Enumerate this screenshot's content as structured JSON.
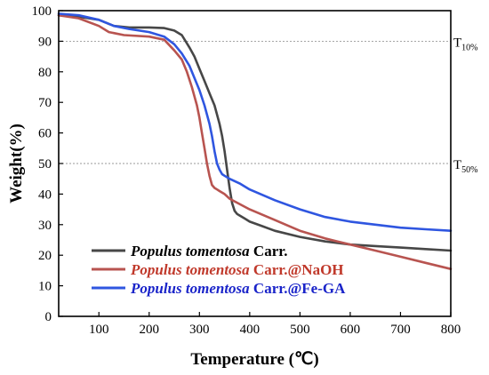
{
  "chart_data": {
    "type": "line",
    "title": "",
    "xlabel": "Temperature (℃)",
    "ylabel": "Weight(%)",
    "xlim": [
      20,
      800
    ],
    "ylim": [
      0,
      100
    ],
    "xticks": [
      100,
      200,
      300,
      400,
      500,
      600,
      700,
      800
    ],
    "yticks": [
      0,
      10,
      20,
      30,
      40,
      50,
      60,
      70,
      80,
      90,
      100
    ],
    "grid": false,
    "legend_position": "bottom-left",
    "reference_lines": [
      {
        "y": 90,
        "label_main": "T",
        "label_sub": "10%"
      },
      {
        "y": 50,
        "label_main": "T",
        "label_sub": "50%"
      }
    ],
    "series": [
      {
        "name_italic": "Populus tomentosa",
        "name_suffix": " Carr.",
        "color": "#474747",
        "text_color": "#000000",
        "x": [
          20,
          60,
          100,
          130,
          160,
          200,
          230,
          250,
          265,
          280,
          290,
          300,
          310,
          320,
          330,
          340,
          345,
          350,
          355,
          360,
          365,
          370,
          375,
          380,
          390,
          400,
          425,
          450,
          500,
          550,
          600,
          650,
          700,
          750,
          800
        ],
        "y": [
          98.5,
          98,
          97,
          95,
          94.5,
          94.5,
          94.3,
          93.5,
          92,
          88,
          85,
          81,
          77,
          73,
          69,
          63,
          59,
          54,
          48,
          42,
          37,
          34.5,
          33.5,
          33,
          32,
          31,
          29.5,
          28,
          26,
          24.5,
          23.5,
          23,
          22.5,
          22,
          21.5
        ]
      },
      {
        "name_italic": "Populus tomentosa",
        "name_suffix": " Carr.@NaOH",
        "color": "#b85450",
        "text_color": "#c0392b",
        "x": [
          20,
          60,
          100,
          120,
          150,
          200,
          230,
          250,
          265,
          275,
          285,
          295,
          300,
          305,
          310,
          315,
          320,
          325,
          330,
          335,
          340,
          350,
          360,
          400,
          450,
          500,
          550,
          600,
          650,
          700,
          750,
          800
        ],
        "y": [
          98.5,
          97.5,
          95,
          93,
          92,
          91.5,
          90.5,
          87,
          84,
          80,
          75,
          69,
          65,
          60,
          55,
          50,
          46,
          43,
          42,
          41.5,
          41,
          40,
          38.5,
          35,
          31.5,
          28,
          25.5,
          23.5,
          21.5,
          19.5,
          17.5,
          15.5
        ]
      },
      {
        "name_italic": "Populus tomentosa",
        "name_suffix": " Carr.@Fe-GA",
        "color": "#2f56e0",
        "text_color": "#1a24c9",
        "x": [
          20,
          60,
          100,
          130,
          160,
          200,
          230,
          250,
          265,
          280,
          290,
          300,
          310,
          320,
          325,
          330,
          335,
          340,
          345,
          350,
          360,
          380,
          400,
          450,
          500,
          550,
          600,
          650,
          700,
          750,
          800
        ],
        "y": [
          99,
          98.5,
          97,
          95,
          94,
          93,
          91.5,
          89,
          86,
          82,
          78,
          74,
          69,
          63,
          59,
          54,
          50,
          48,
          46.5,
          46,
          45,
          43.5,
          41.5,
          38,
          35,
          32.5,
          31,
          30,
          29,
          28.5,
          28
        ]
      }
    ]
  }
}
